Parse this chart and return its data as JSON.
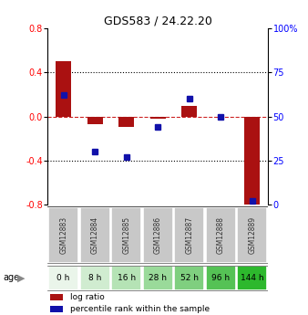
{
  "title": "GDS583 / 24.22.20",
  "samples": [
    "GSM12883",
    "GSM12884",
    "GSM12885",
    "GSM12886",
    "GSM12887",
    "GSM12888",
    "GSM12889"
  ],
  "ages": [
    "0 h",
    "8 h",
    "16 h",
    "28 h",
    "52 h",
    "96 h",
    "144 h"
  ],
  "log_ratio": [
    0.5,
    -0.07,
    -0.09,
    -0.02,
    0.1,
    0.0,
    -0.83
  ],
  "percentile_rank": [
    62,
    30,
    27,
    44,
    60,
    50,
    2
  ],
  "ylim_left": [
    -0.8,
    0.8
  ],
  "ylim_right": [
    0,
    100
  ],
  "yticks_left": [
    -0.8,
    -0.4,
    0.0,
    0.4,
    0.8
  ],
  "yticks_right": [
    0,
    25,
    50,
    75,
    100
  ],
  "bar_color": "#aa1111",
  "scatter_color": "#1111aa",
  "hline_color": "#cc2222",
  "age_colors": [
    "#eaf5ea",
    "#d0ecd0",
    "#b5e3b5",
    "#9ada9a",
    "#7fcf7f",
    "#55c255",
    "#2db82d"
  ],
  "sample_bg": "#c8c8c8",
  "legend_items": [
    "log ratio",
    "percentile rank within the sample"
  ],
  "figsize": [
    3.38,
    3.45
  ],
  "dpi": 100
}
